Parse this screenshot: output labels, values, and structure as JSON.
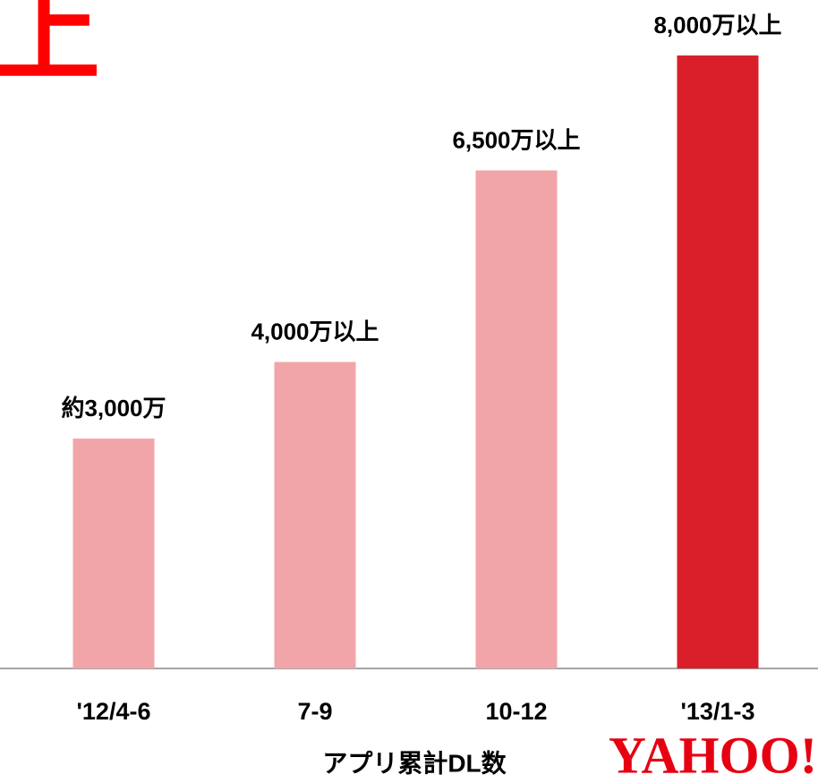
{
  "heading": "上",
  "chart_data": {
    "type": "bar",
    "categories": [
      "'12/4-6",
      "7-9",
      "10-12",
      "'13/1-3"
    ],
    "values": [
      3000,
      4000,
      6500,
      8000
    ],
    "value_labels": [
      "約3,000万",
      "4,000万以上",
      "6,500万以上",
      "8,000万以上"
    ],
    "colors": [
      "#f2a5a8",
      "#f2a5a8",
      "#f2a5a8",
      "#d9202a"
    ],
    "x_label": "アプリ累計DL数"
  },
  "logo": "YAHOO!"
}
